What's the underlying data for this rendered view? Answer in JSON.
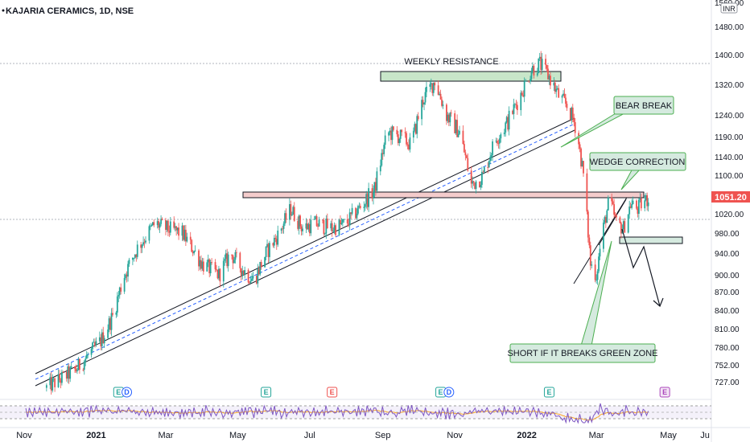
{
  "chart_data": {
    "type": "candlestick",
    "title": "KAJARIA CERAMICS, 1D, NSE",
    "currency": "INR",
    "last_price": "1051.20",
    "y_ticks": [
      "1560.00",
      "1480.00",
      "1400.00",
      "1320.00",
      "1240.00",
      "1190.00",
      "1140.00",
      "1100.00",
      "1060.00",
      "1020.00",
      "980.00",
      "940.00",
      "900.00",
      "870.00",
      "840.00",
      "810.00",
      "780.00",
      "752.00",
      "727.00"
    ],
    "x_ticks": [
      "Nov",
      "2021",
      "Mar",
      "May",
      "Jul",
      "Sep",
      "Nov",
      "2022",
      "Mar",
      "May",
      "Ju"
    ],
    "price_path": [
      [
        "2020-11-20",
        718
      ],
      [
        "2020-12-15",
        745
      ],
      [
        "2021-01-05",
        790
      ],
      [
        "2021-01-15",
        830
      ],
      [
        "2021-01-25",
        900
      ],
      [
        "2021-02-05",
        950
      ],
      [
        "2021-02-20",
        1000
      ],
      [
        "2021-03-01",
        990
      ],
      [
        "2021-03-15",
        980
      ],
      [
        "2021-04-01",
        920
      ],
      [
        "2021-04-15",
        900
      ],
      [
        "2021-04-25",
        940
      ],
      [
        "2021-05-05",
        910
      ],
      [
        "2021-05-15",
        890
      ],
      [
        "2021-05-25",
        940
      ],
      [
        "2021-06-05",
        980
      ],
      [
        "2021-06-15",
        1030
      ],
      [
        "2021-06-25",
        990
      ],
      [
        "2021-07-05",
        1000
      ],
      [
        "2021-07-20",
        990
      ],
      [
        "2021-08-01",
        1000
      ],
      [
        "2021-08-15",
        1040
      ],
      [
        "2021-08-25",
        1070
      ],
      [
        "2021-09-05",
        1200
      ],
      [
        "2021-09-15",
        1190
      ],
      [
        "2021-09-25",
        1170
      ],
      [
        "2021-10-05",
        1280
      ],
      [
        "2021-10-15",
        1330
      ],
      [
        "2021-10-25",
        1240
      ],
      [
        "2021-11-05",
        1200
      ],
      [
        "2021-11-15",
        1080
      ],
      [
        "2021-11-25",
        1100
      ],
      [
        "2021-12-05",
        1180
      ],
      [
        "2021-12-15",
        1220
      ],
      [
        "2021-12-25",
        1280
      ],
      [
        "2022-01-05",
        1360
      ],
      [
        "2022-01-12",
        1375
      ],
      [
        "2022-01-20",
        1340
      ],
      [
        "2022-01-28",
        1290
      ],
      [
        "2022-02-05",
        1260
      ],
      [
        "2022-02-12",
        1210
      ],
      [
        "2022-02-18",
        1100
      ],
      [
        "2022-02-24",
        920
      ],
      [
        "2022-03-01",
        900
      ],
      [
        "2022-03-06",
        980
      ],
      [
        "2022-03-12",
        1050
      ],
      [
        "2022-03-18",
        1000
      ],
      [
        "2022-03-24",
        990
      ],
      [
        "2022-03-30",
        1040
      ],
      [
        "2022-04-05",
        1030
      ],
      [
        "2022-04-10",
        1045
      ],
      [
        "2022-04-14",
        1051.2
      ]
    ],
    "levels": {
      "weekly_resistance": [
        1345,
        1373
      ],
      "pink_zone": [
        1052,
        1066
      ],
      "green_zone": [
        955,
        966
      ]
    },
    "annotations": [
      "WEEKLY RESISTANCE",
      "BEAR BREAK",
      "WEDGE CORRECTION",
      "SHORT IF IT BREAKS GREEN ZONE"
    ],
    "event_markers": [
      {
        "label": "E",
        "kind": "earnings",
        "date": "2021-01-20"
      },
      {
        "label": "D",
        "kind": "dividend",
        "date": "2021-01-27"
      },
      {
        "label": "E",
        "kind": "earnings",
        "date": "2021-05-25"
      },
      {
        "label": "E",
        "kind": "earnings-red",
        "date": "2021-07-20"
      },
      {
        "label": "E",
        "kind": "earnings",
        "date": "2021-10-20"
      },
      {
        "label": "D",
        "kind": "dividend",
        "date": "2021-10-27"
      },
      {
        "label": "E",
        "kind": "earnings",
        "date": "2022-01-20"
      },
      {
        "label": "E",
        "kind": "earnings-future",
        "date": "2022-04-28"
      }
    ],
    "colors": {
      "up": "#26a69a",
      "down": "#ef5350",
      "resistance_fill": "#c8e6c9",
      "pink_fill": "#f4cccc",
      "callout_fill": "#d5eadf",
      "last_price_bg": "#ef5350",
      "rsi": "#7e57c2",
      "rsi_signal": "#f9a825"
    }
  }
}
